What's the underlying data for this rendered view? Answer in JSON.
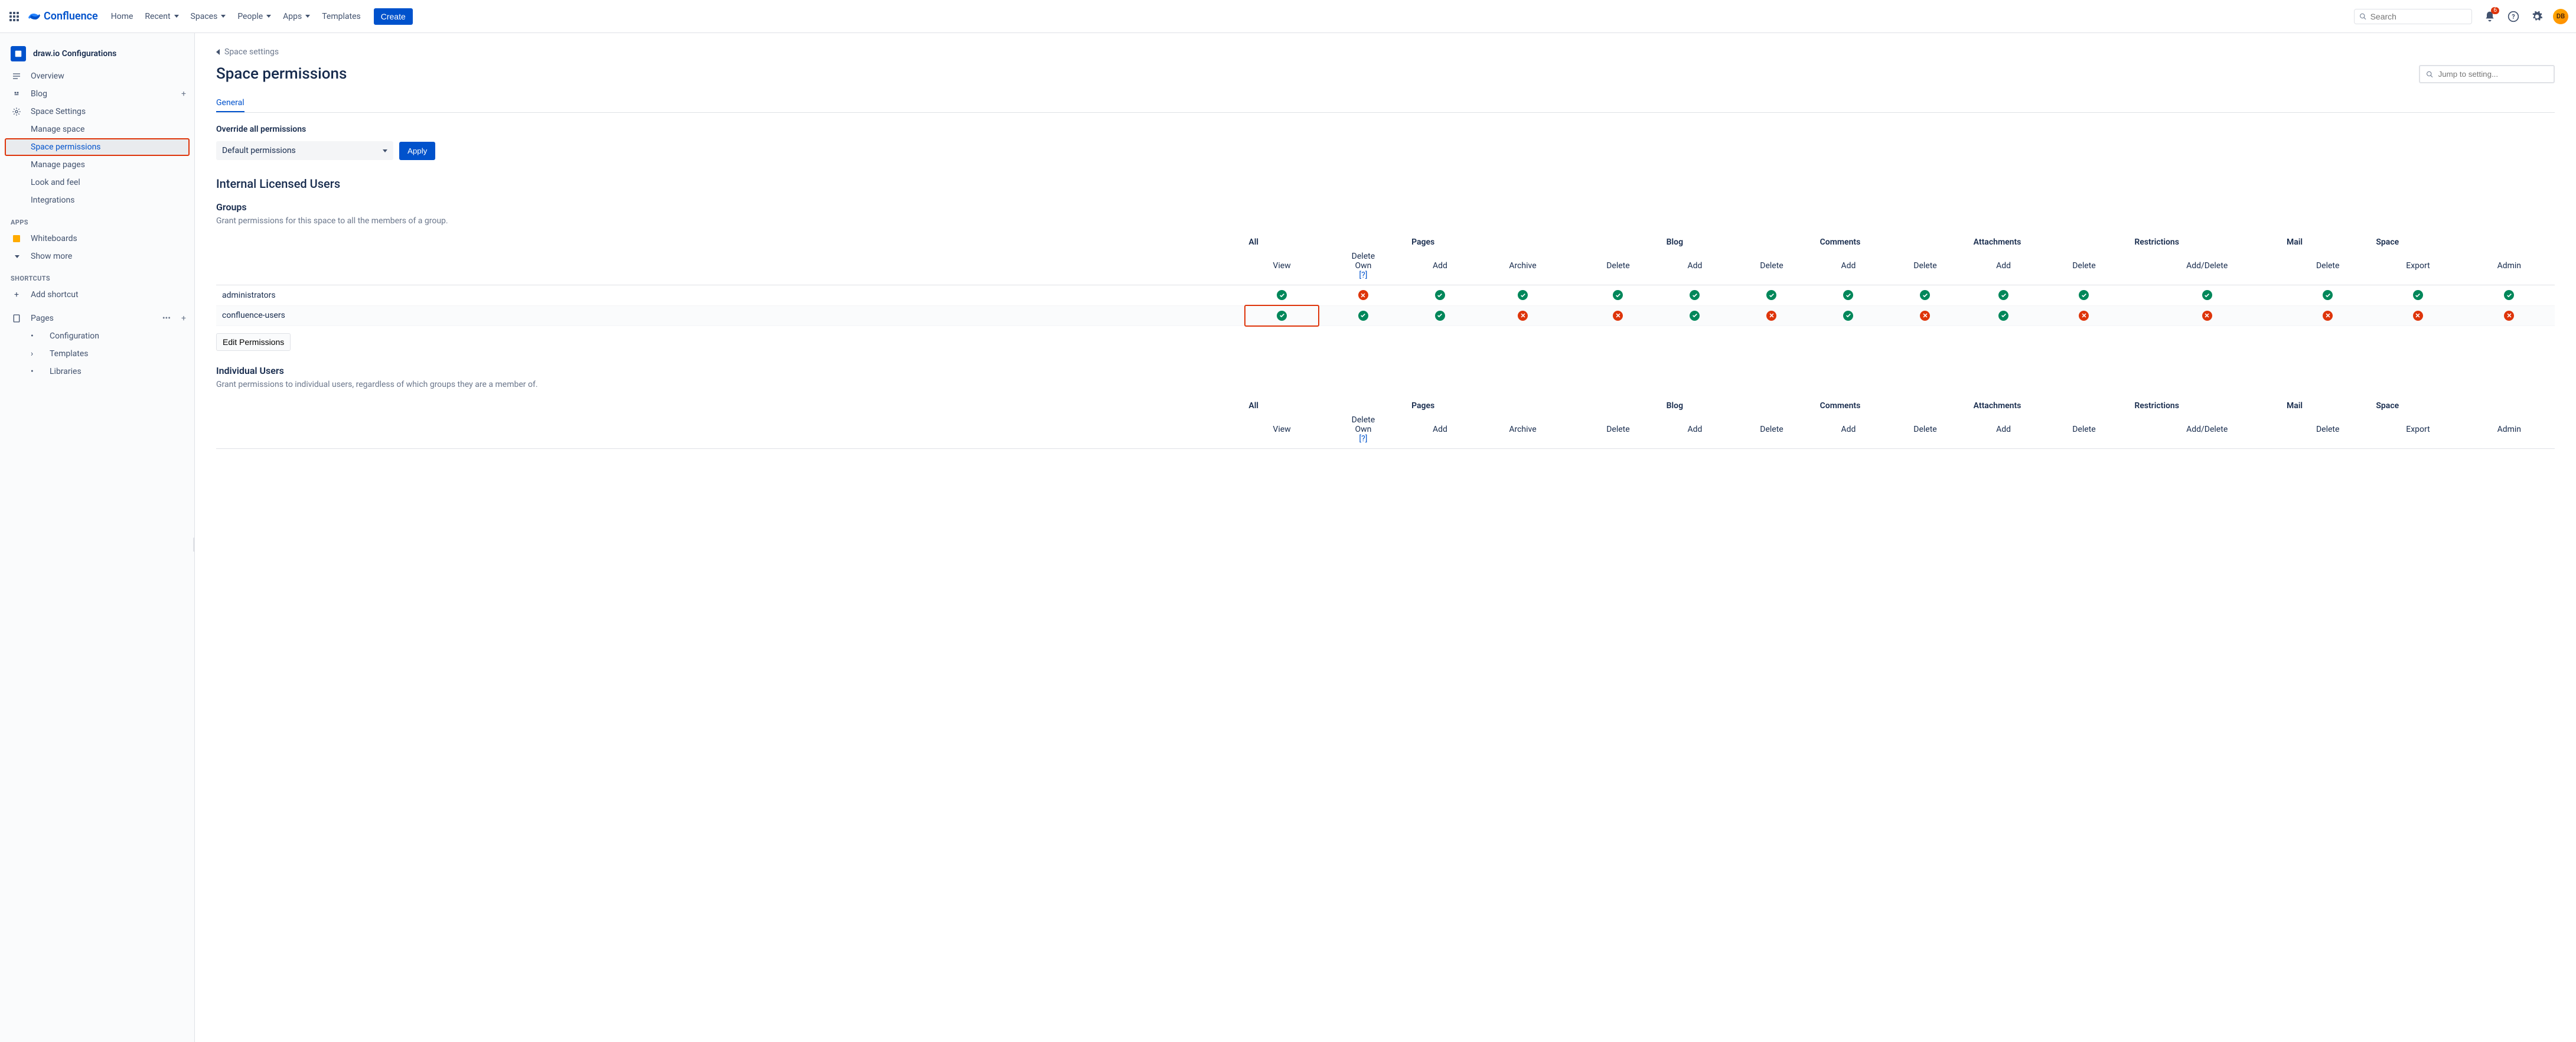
{
  "top": {
    "app_name": "Confluence",
    "nav": [
      "Home",
      "Recent",
      "Spaces",
      "People",
      "Apps",
      "Templates"
    ],
    "nav_has_chev": [
      false,
      true,
      true,
      true,
      true,
      false
    ],
    "create": "Create",
    "search_placeholder": "Search",
    "notif_count": "6",
    "avatar_initials": "DB"
  },
  "sidebar": {
    "space_name": "draw.io Configurations",
    "items": [
      {
        "icon": "overview",
        "label": "Overview",
        "add": false
      },
      {
        "icon": "blog",
        "label": "Blog",
        "add": true
      },
      {
        "icon": "settings",
        "label": "Space Settings",
        "add": false
      }
    ],
    "settings_children": [
      "Manage space",
      "Space permissions",
      "Manage pages",
      "Look and feel",
      "Integrations"
    ],
    "highlight_child_index": 1,
    "apps_label": "APPS",
    "whiteboards": "Whiteboards",
    "show_more": "Show more",
    "shortcuts_label": "SHORTCUTS",
    "add_shortcut": "Add shortcut",
    "pages": "Pages",
    "page_children": [
      "Configuration",
      "Templates",
      "Libraries"
    ]
  },
  "breadcrumb": "Space settings",
  "page_title": "Space permissions",
  "setting_search_placeholder": "Jump to setting...",
  "tab_general": "General",
  "override_label": "Override all permissions",
  "select_value": "Default permissions",
  "apply_label": "Apply",
  "internal_users": "Internal Licensed Users",
  "groups_heading": "Groups",
  "groups_desc": "Grant permissions for this space to all the members of a group.",
  "columns": {
    "group_labels": [
      "",
      "All",
      "Pages",
      "Blog",
      "Comments",
      "Attachments",
      "Restrictions",
      "Mail",
      "Space"
    ],
    "group_spans": [
      1,
      2,
      3,
      2,
      2,
      2,
      1,
      1,
      2
    ],
    "sub_labels": [
      "",
      "View",
      "Delete Own",
      "Add",
      "Archive",
      "Delete",
      "Add",
      "Delete",
      "Add",
      "Delete",
      "Add",
      "Delete",
      "Add/Delete",
      "Delete",
      "Export",
      "Admin"
    ],
    "help_marker": "[?]"
  },
  "group_rows": [
    {
      "name": "administrators",
      "cells": [
        true,
        false,
        true,
        true,
        true,
        true,
        true,
        true,
        true,
        true,
        true,
        true,
        true,
        true,
        true
      ]
    },
    {
      "name": "confluence-users",
      "cells": [
        true,
        true,
        true,
        false,
        false,
        true,
        false,
        true,
        false,
        true,
        false,
        false,
        false,
        false,
        false
      ],
      "highlight_cell": 0
    }
  ],
  "edit_permissions": "Edit Permissions",
  "individual_heading": "Individual Users",
  "individual_desc": "Grant permissions to individual users, regardless of which groups they are a member of.",
  "colors": {
    "primary": "#0052cc",
    "green": "#00875a",
    "red": "#de350b"
  }
}
